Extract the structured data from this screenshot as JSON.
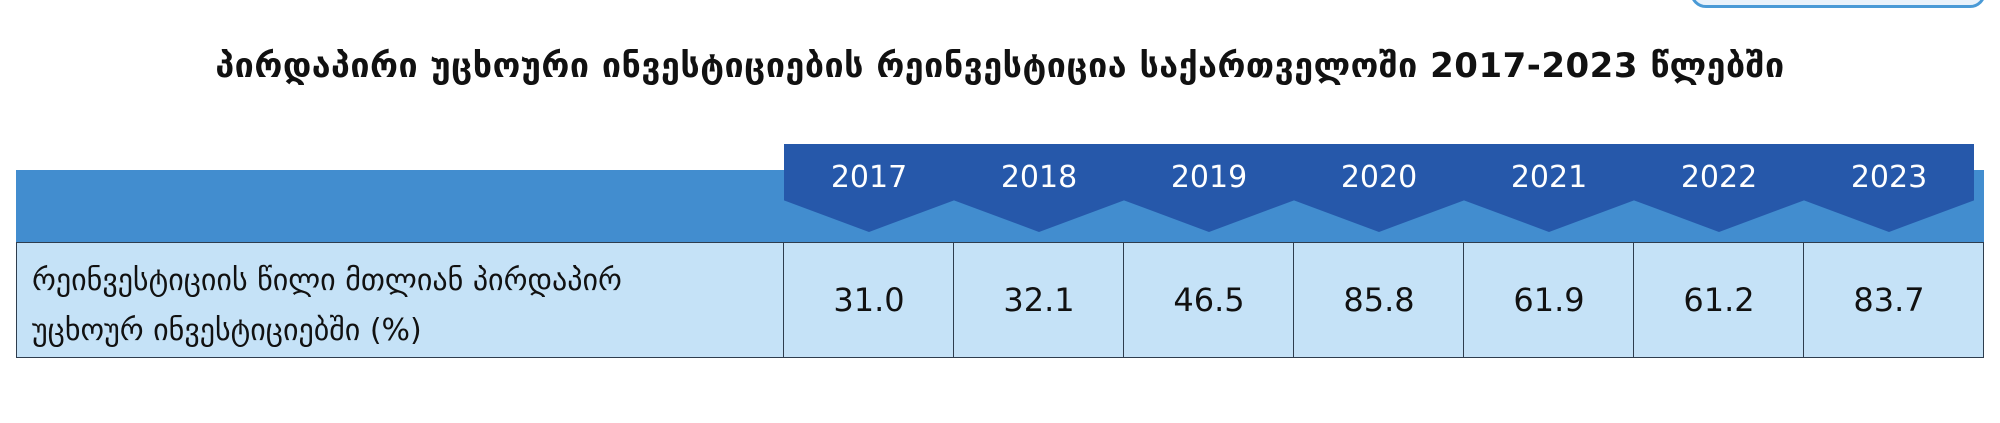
{
  "title": "პირდაპირი უცხოური ინვესტიციების რეინვესტიცია საქართველოში 2017-2023 წლებში",
  "years": [
    "2017",
    "2018",
    "2019",
    "2020",
    "2021",
    "2022",
    "2023"
  ],
  "row": {
    "label_line1": "რეინვესტიციის წილი მთლიან პირდაპირ",
    "label_line2": "უცხოურ ინვესტიციებში (%)",
    "values": [
      "31.0",
      "32.1",
      "46.5",
      "85.8",
      "61.9",
      "61.2",
      "83.7"
    ]
  },
  "colors": {
    "header_dark": "#2658aa",
    "header_band": "#428dcf",
    "row_bg": "#c5e2f7",
    "border": "#2e3d4e"
  }
}
